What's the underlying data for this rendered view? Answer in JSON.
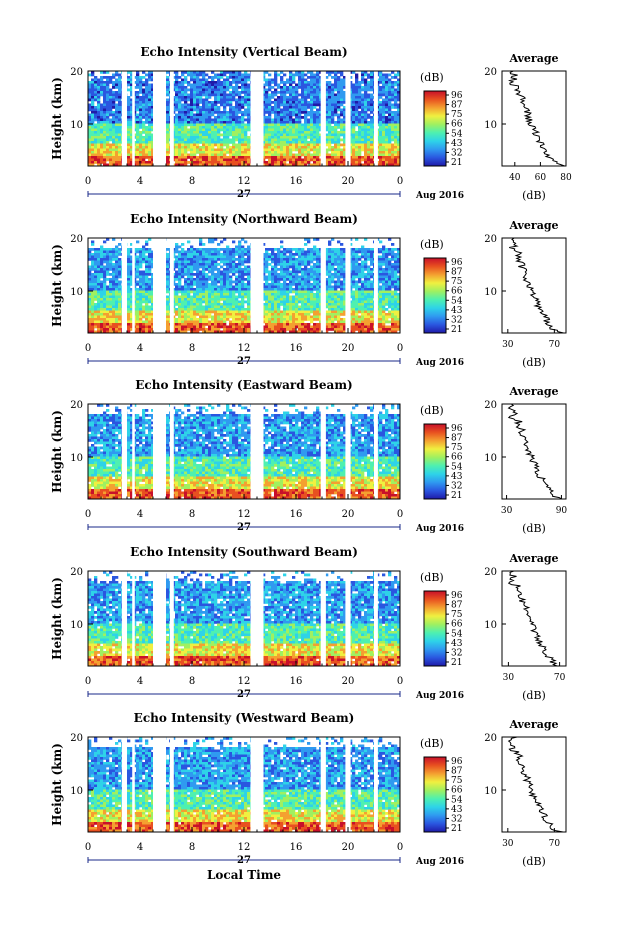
{
  "figure": {
    "colorbar_unit": "(dB)",
    "colorbar_ticks": [
      "96",
      "87",
      "75",
      "66",
      "54",
      "43",
      "32",
      "21"
    ],
    "colormap": [
      "#1f1aa8",
      "#2a56e0",
      "#2f9af0",
      "#2ed3e8",
      "#4ef0b0",
      "#a0f060",
      "#f0f040",
      "#f4a030",
      "#e85020",
      "#c8102a"
    ],
    "x_ticks": [
      "0",
      "4",
      "8",
      "12",
      "16",
      "20",
      "0"
    ],
    "date_day": "27",
    "date_label": "Aug 2016",
    "ylabel": "Height (km)",
    "y_ticks": [
      "20",
      "10"
    ],
    "avg_title": "Average",
    "avg_xlabel": "(dB)",
    "avg_y_ticks": [
      "20",
      "10"
    ],
    "xlabel": "Local Time"
  },
  "chart_data": [
    {
      "type": "heatmap",
      "title": "Echo Intensity (Vertical Beam)",
      "x_range": [
        0,
        24
      ],
      "y_range": [
        0,
        20
      ],
      "x_unit": "hours (local time)",
      "y_unit": "km",
      "color_range": [
        21,
        96
      ],
      "data_gaps_hours": [
        [
          2.6,
          3.0
        ],
        [
          3.4,
          3.6
        ],
        [
          5.0,
          6.0
        ],
        [
          6.3,
          6.6
        ],
        [
          12.5,
          13.5
        ],
        [
          17.9,
          18.3
        ],
        [
          19.8,
          20.2
        ],
        [
          22.0,
          22.3
        ]
      ],
      "average": {
        "x_range": [
          30,
          80
        ],
        "x_ticks": [
          "40",
          "60",
          "80"
        ]
      }
    },
    {
      "type": "heatmap",
      "title": "Echo Intensity (Northward Beam)",
      "x_range": [
        0,
        24
      ],
      "y_range": [
        0,
        20
      ],
      "color_range": [
        21,
        96
      ],
      "data_gaps_hours": [
        [
          2.6,
          3.0
        ],
        [
          3.4,
          3.6
        ],
        [
          5.0,
          6.0
        ],
        [
          6.3,
          6.6
        ],
        [
          12.5,
          13.5
        ],
        [
          17.9,
          18.3
        ],
        [
          19.8,
          20.2
        ],
        [
          22.0,
          22.3
        ]
      ],
      "average": {
        "x_range": [
          25,
          80
        ],
        "x_ticks": [
          "30",
          "70"
        ]
      }
    },
    {
      "type": "heatmap",
      "title": "Echo Intensity (Eastward Beam)",
      "x_range": [
        0,
        24
      ],
      "y_range": [
        0,
        20
      ],
      "color_range": [
        21,
        96
      ],
      "data_gaps_hours": [
        [
          2.6,
          3.0
        ],
        [
          3.4,
          3.6
        ],
        [
          5.0,
          6.0
        ],
        [
          6.3,
          6.6
        ],
        [
          12.5,
          13.5
        ],
        [
          17.9,
          18.3
        ],
        [
          19.8,
          20.2
        ],
        [
          22.0,
          22.3
        ]
      ],
      "average": {
        "x_range": [
          25,
          95
        ],
        "x_ticks": [
          "30",
          "90"
        ]
      }
    },
    {
      "type": "heatmap",
      "title": "Echo Intensity (Southward Beam)",
      "x_range": [
        0,
        24
      ],
      "y_range": [
        0,
        20
      ],
      "color_range": [
        21,
        96
      ],
      "data_gaps_hours": [
        [
          2.6,
          3.0
        ],
        [
          3.4,
          3.6
        ],
        [
          5.0,
          6.0
        ],
        [
          6.3,
          6.6
        ],
        [
          12.5,
          13.5
        ],
        [
          17.9,
          18.3
        ],
        [
          19.8,
          20.2
        ],
        [
          22.0,
          22.3
        ]
      ],
      "average": {
        "x_range": [
          25,
          75
        ],
        "x_ticks": [
          "30",
          "70"
        ]
      }
    },
    {
      "type": "heatmap",
      "title": "Echo Intensity (Westward Beam)",
      "x_range": [
        0,
        24
      ],
      "y_range": [
        0,
        20
      ],
      "color_range": [
        21,
        96
      ],
      "data_gaps_hours": [
        [
          2.6,
          3.0
        ],
        [
          3.4,
          3.6
        ],
        [
          5.0,
          6.0
        ],
        [
          6.3,
          6.6
        ],
        [
          12.5,
          13.5
        ],
        [
          17.9,
          18.3
        ],
        [
          19.8,
          20.2
        ],
        [
          22.0,
          22.3
        ]
      ],
      "average": {
        "x_range": [
          25,
          80
        ],
        "x_ticks": [
          "30",
          "70"
        ]
      }
    }
  ]
}
